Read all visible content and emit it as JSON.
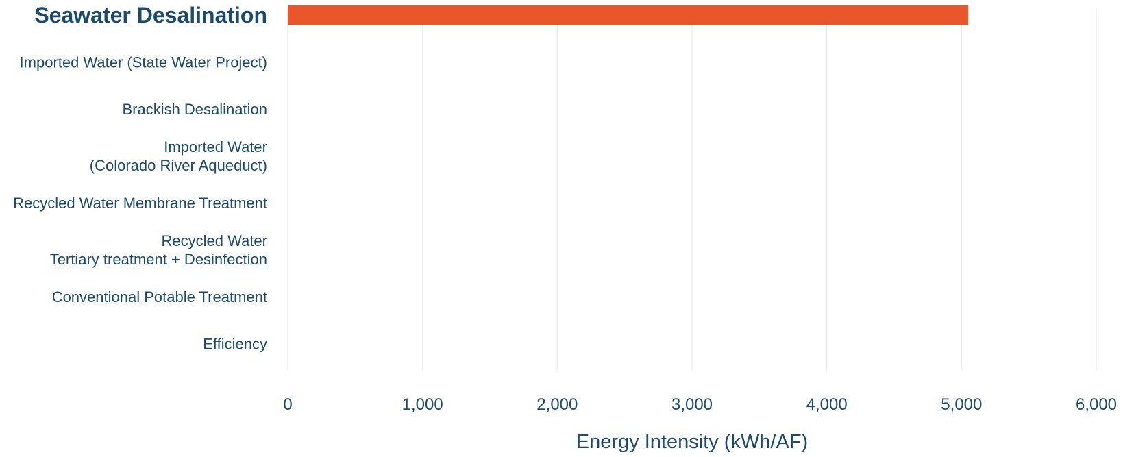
{
  "chart_data": {
    "type": "bar",
    "orientation": "horizontal",
    "categories": [
      "Seawater Desalination",
      "Imported Water (State Water Project)",
      "Brackish Desalination",
      "Imported Water\n(Colorado River Aqueduct)",
      "Recycled Water Membrane Treatment",
      "Recycled Water\nTertiary treatment + Desinfection",
      "Conventional Potable Treatment",
      "Efficiency"
    ],
    "values": [
      5050,
      null,
      null,
      null,
      null,
      null,
      null,
      null
    ],
    "highlighted_category": "Seawater Desalination",
    "xlabel": "Energy Intensity (kWh/AF)",
    "ylabel": "",
    "xlim": [
      0,
      6000
    ],
    "xticks": [
      0,
      1000,
      2000,
      3000,
      4000,
      5000,
      6000
    ],
    "xtick_labels": [
      "0",
      "1,000",
      "2,000",
      "3,000",
      "4,000",
      "5,000",
      "6,000"
    ],
    "grid": "vertical",
    "bar_color": "#e8562a",
    "text_color": "#1b4a6b"
  }
}
